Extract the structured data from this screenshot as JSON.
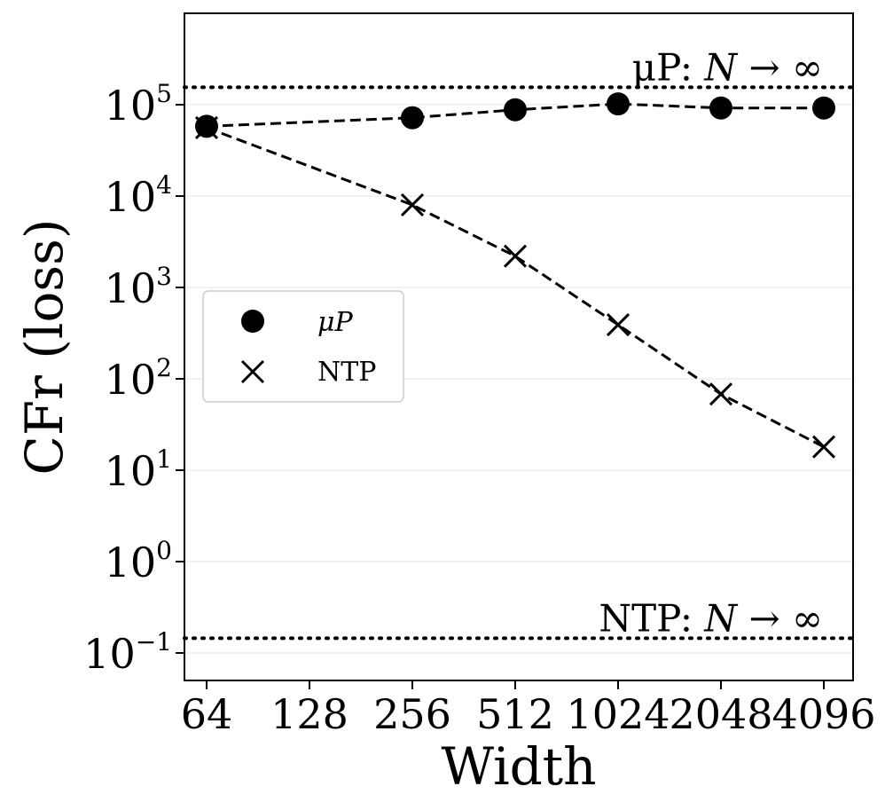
{
  "chart_data": {
    "type": "line",
    "xlabel": "Width",
    "ylabel": "CFr (loss)",
    "yscale": "log",
    "ylim": [
      0.05,
      1000000
    ],
    "x_ticks": [
      {
        "value": 64,
        "label": "64"
      },
      {
        "value": 128,
        "label": "128"
      },
      {
        "value": 256,
        "label": "256"
      },
      {
        "value": 512,
        "label": "512"
      },
      {
        "value": 1024,
        "label": "1024"
      },
      {
        "value": 2048,
        "label": "2048"
      },
      {
        "value": 4096,
        "label": "4096"
      }
    ],
    "y_ticks": [
      {
        "value": 0.1,
        "base": "10",
        "exp": "−1"
      },
      {
        "value": 1,
        "base": "10",
        "exp": "0"
      },
      {
        "value": 10,
        "base": "10",
        "exp": "1"
      },
      {
        "value": 100,
        "base": "10",
        "exp": "2"
      },
      {
        "value": 1000,
        "base": "10",
        "exp": "3"
      },
      {
        "value": 10000,
        "base": "10",
        "exp": "4"
      },
      {
        "value": 100000,
        "base": "10",
        "exp": "5"
      }
    ],
    "grid": "horizontal",
    "legend": {
      "placement": "center-left"
    },
    "series": [
      {
        "name": "μP",
        "marker": "circle",
        "line": "dashed",
        "color": "#000000",
        "x": [
          64,
          256,
          512,
          1024,
          2048,
          4096
        ],
        "y": [
          58000,
          72000,
          88000,
          102000,
          92000,
          92000
        ]
      },
      {
        "name": "NTP",
        "marker": "x",
        "line": "dashed",
        "color": "#000000",
        "x": [
          64,
          256,
          512,
          1024,
          2048,
          4096
        ],
        "y": [
          56000,
          8000,
          2200,
          390,
          68,
          18
        ]
      }
    ],
    "reference_lines": [
      {
        "label_prefix": "μP: ",
        "label_var": "N",
        "label_suffix": " → ∞",
        "y": 155000,
        "style": "dotted"
      },
      {
        "label_prefix": "NTP: ",
        "label_var": "N",
        "label_suffix": " → ∞",
        "y": 0.145,
        "style": "dotted"
      }
    ]
  }
}
